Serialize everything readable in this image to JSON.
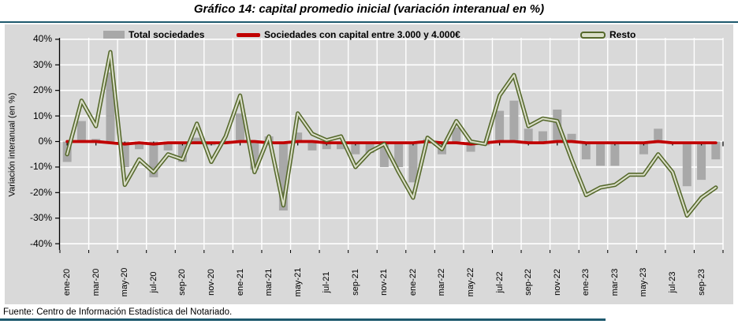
{
  "title": "Gráfico 14: capital promedio inicial (variación interanual en %)",
  "y_axis_title": "Variación interanual (en %)",
  "footer": {
    "source": "Fuente: Centro de Información Estadística del Notariado."
  },
  "colors": {
    "divider": "#1e5a6e",
    "panel_bg": "#d9d9d9",
    "gridline": "#ffffff",
    "bar": "#a8a8a8",
    "red_line": "#c00000",
    "resto_dark": "#55682b",
    "resto_light": "#dadec9",
    "axis": "#000000"
  },
  "chart_data": {
    "type": "bar+line combo",
    "title": "Gráfico 14: capital promedio inicial (variación interanual en %)",
    "ylabel": "Variación interanual (en %)",
    "ylim": [
      -40,
      40
    ],
    "y_ticks": [
      40,
      30,
      20,
      10,
      0,
      -10,
      -20,
      -30,
      -40
    ],
    "y_tick_labels": [
      "40%",
      "30%",
      "20%",
      "10%",
      "0%",
      "-10%",
      "-20%",
      "-30%",
      "-40%"
    ],
    "grid": true,
    "legend_position": "top",
    "categories": [
      "ene-20",
      "feb-20",
      "mar-20",
      "abr-20",
      "may-20",
      "jun-20",
      "jul-20",
      "ago-20",
      "sep-20",
      "oct-20",
      "nov-20",
      "dic-20",
      "ene-21",
      "feb-21",
      "mar-21",
      "abr-21",
      "may-21",
      "jun-21",
      "jul-21",
      "ago-21",
      "sep-21",
      "oct-21",
      "nov-21",
      "dic-21",
      "ene-22",
      "feb-22",
      "mar-22",
      "abr-22",
      "may-22",
      "jun-22",
      "jul-22",
      "ago-22",
      "sep-22",
      "oct-22",
      "nov-22",
      "dic-22",
      "ene-23",
      "feb-23",
      "mar-23",
      "abr-23",
      "may-23",
      "jun-23",
      "jul-23",
      "ago-23",
      "sep-23",
      "oct-23"
    ],
    "x_tick_labels": [
      "ene-20",
      "mar-20",
      "may-20",
      "jul-20",
      "sep-20",
      "nov-20",
      "ene-21",
      "mar-21",
      "may-21",
      "jul-21",
      "sep-21",
      "nov-21",
      "ene-22",
      "mar-22",
      "may-22",
      "jul-22",
      "sep-22",
      "nov-22",
      "ene-23",
      "mar-23",
      "may-23",
      "jul-23",
      "sep-23"
    ],
    "series": [
      {
        "name": "Total sociedades",
        "type": "bar",
        "values": [
          -8,
          8,
          1,
          27,
          -10,
          -3,
          -14,
          -3.5,
          -8,
          1.5,
          -1.5,
          0.3,
          11,
          -11,
          2,
          -27,
          3.5,
          -3.5,
          -3,
          -3,
          -5,
          -4.5,
          -10,
          -10,
          -16,
          1,
          -5,
          5.5,
          -4,
          -1.5,
          12,
          16,
          5,
          4,
          12.5,
          3,
          -7,
          -9.5,
          -9.5,
          -0.5,
          -5,
          5,
          -1,
          -17.5,
          -15,
          -7
        ]
      },
      {
        "name": "Sociedades con capital entre 3.000 y 4.000€",
        "type": "line",
        "values": [
          0,
          0,
          0,
          -0.5,
          -1,
          -0.5,
          -1,
          -0.5,
          -0.5,
          -0.5,
          -0.5,
          -0.5,
          0,
          0,
          -0.5,
          -0.5,
          0,
          0,
          -0.5,
          -0.5,
          -0.5,
          -0.5,
          -0.5,
          -0.5,
          -0.5,
          0,
          -0.5,
          -0.5,
          -1,
          -0.5,
          0,
          0,
          -0.5,
          -0.5,
          0,
          0,
          -0.5,
          -0.5,
          -0.5,
          -0.5,
          -0.5,
          0,
          -0.5,
          -0.5,
          -0.5,
          -0.5
        ]
      },
      {
        "name": "Resto",
        "type": "line",
        "values": [
          -5,
          16,
          6,
          35,
          -17,
          -7,
          -12,
          -5,
          -7,
          7,
          -8,
          2,
          18,
          -12,
          2,
          -25,
          11,
          3,
          0.5,
          2,
          -10,
          -4,
          -1,
          -12,
          -22,
          1.5,
          -3,
          8,
          0,
          -1,
          18,
          26,
          6,
          9,
          8,
          -7,
          -21,
          -18,
          -17,
          -13,
          -13,
          -5,
          -12,
          -29,
          -22,
          -18
        ]
      }
    ]
  }
}
